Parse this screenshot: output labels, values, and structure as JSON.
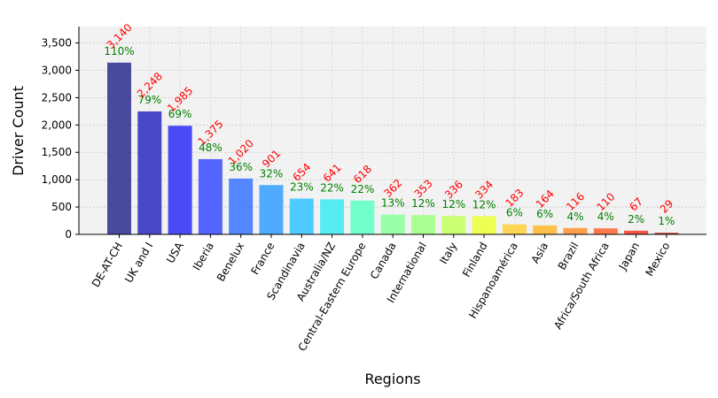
{
  "chart_data": {
    "type": "bar",
    "title": "",
    "xlabel": "Regions",
    "ylabel": "Driver Count",
    "ylim": [
      0,
      3800
    ],
    "yticks": [
      0,
      500,
      1000,
      1500,
      2000,
      2500,
      3000,
      3500
    ],
    "ytick_labels": [
      "0",
      "500",
      "1,000",
      "1,500",
      "2,000",
      "2,500",
      "3,000",
      "3,500"
    ],
    "grid": true,
    "categories": [
      "DE-AT-CH",
      "UK and I",
      "USA",
      "Iberia",
      "Benelux",
      "France",
      "Scandinavia",
      "Australia/NZ",
      "Central-Eastern Europe",
      "Canada",
      "International",
      "Italy",
      "Finland",
      "Hispanoamérica",
      "Asia",
      "Brazil",
      "Africa/South Africa",
      "Japan",
      "Mexico"
    ],
    "values": [
      3140,
      2248,
      1985,
      1375,
      1020,
      901,
      654,
      641,
      618,
      362,
      353,
      336,
      334,
      183,
      164,
      116,
      110,
      67,
      29
    ],
    "value_labels": [
      "3,140",
      "2,248",
      "1,985",
      "1,375",
      "1,020",
      "901",
      "654",
      "641",
      "618",
      "362",
      "353",
      "336",
      "334",
      "183",
      "164",
      "116",
      "110",
      "67",
      "29"
    ],
    "percent_labels": [
      "110%",
      "79%",
      "69%",
      "48%",
      "36%",
      "32%",
      "23%",
      "22%",
      "22%",
      "13%",
      "12%",
      "12%",
      "12%",
      "6%",
      "6%",
      "4%",
      "4%",
      "2%",
      "1%"
    ],
    "bar_colors": [
      "#3f3f99",
      "#3f3fc4",
      "#4040f5",
      "#4a5cff",
      "#4a80ff",
      "#47a6ff",
      "#47c8ff",
      "#4cecf0",
      "#6cffc8",
      "#93ffa4",
      "#a8ff8c",
      "#c8ff6c",
      "#ecff4a",
      "#ffd44a",
      "#ffbe40",
      "#ff9a40",
      "#ff7240",
      "#f54a3a",
      "#b5332b"
    ],
    "value_label_color": "#ff0000",
    "percent_label_color": "#008000",
    "plot_background": "#f2f2f2"
  }
}
